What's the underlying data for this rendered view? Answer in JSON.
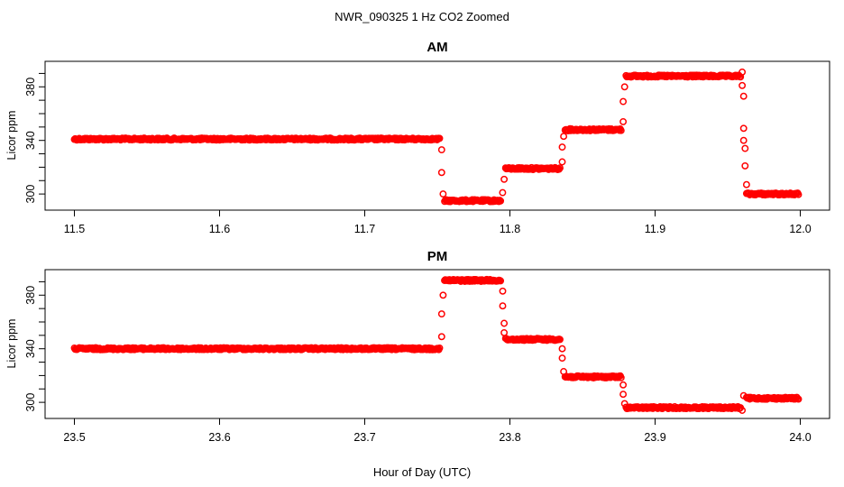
{
  "figure": {
    "suptitle": "NWR_090325  1 Hz CO2 Zoomed",
    "xlabel": "Hour of Day (UTC)"
  },
  "colors": {
    "points": "#ff0000",
    "axes": "#000000",
    "background": "#ffffff"
  },
  "chart_data": [
    {
      "type": "scatter",
      "title": "AM",
      "xlabel": "Hour of Day (UTC)",
      "ylabel": "Licor ppm",
      "xlim": [
        11.5,
        12.0
      ],
      "ylim": [
        292,
        395
      ],
      "xticks": [
        "11.5",
        "11.6",
        "11.7",
        "11.8",
        "11.9",
        "12.0"
      ],
      "yticks": [
        "300",
        "340",
        "380"
      ],
      "grid": false,
      "marker": "open-circle",
      "color": "#ff0000",
      "segments": [
        {
          "x_start": 11.5,
          "x_end": 11.752,
          "y": 341
        },
        {
          "x_start": 11.755,
          "x_end": 11.794,
          "y": 295
        },
        {
          "x_start": 11.797,
          "x_end": 11.835,
          "y": 319
        },
        {
          "x_start": 11.838,
          "x_end": 11.877,
          "y": 348
        },
        {
          "x_start": 11.88,
          "x_end": 11.959,
          "y": 388
        },
        {
          "x_start": 11.963,
          "x_end": 11.999,
          "y": 300
        }
      ],
      "transitions": [
        {
          "x": 11.753,
          "y": 333
        },
        {
          "x": 11.753,
          "y": 316
        },
        {
          "x": 11.754,
          "y": 300
        },
        {
          "x": 11.795,
          "y": 301
        },
        {
          "x": 11.796,
          "y": 311
        },
        {
          "x": 11.836,
          "y": 324
        },
        {
          "x": 11.836,
          "y": 335
        },
        {
          "x": 11.837,
          "y": 343
        },
        {
          "x": 11.878,
          "y": 354
        },
        {
          "x": 11.878,
          "y": 369
        },
        {
          "x": 11.879,
          "y": 380
        },
        {
          "x": 11.96,
          "y": 391
        },
        {
          "x": 11.96,
          "y": 381
        },
        {
          "x": 11.961,
          "y": 373
        },
        {
          "x": 11.961,
          "y": 349
        },
        {
          "x": 11.961,
          "y": 340
        },
        {
          "x": 11.962,
          "y": 334
        },
        {
          "x": 11.962,
          "y": 321
        },
        {
          "x": 11.963,
          "y": 307
        }
      ]
    },
    {
      "type": "scatter",
      "title": "PM",
      "xlabel": "Hour of Day (UTC)",
      "ylabel": "Licor ppm",
      "xlim": [
        23.5,
        24.0
      ],
      "ylim": [
        292,
        395
      ],
      "xticks": [
        "23.5",
        "23.6",
        "23.7",
        "23.8",
        "23.9",
        "24.0"
      ],
      "yticks": [
        "300",
        "340",
        "380"
      ],
      "grid": false,
      "marker": "open-circle",
      "color": "#ff0000",
      "segments": [
        {
          "x_start": 23.5,
          "x_end": 23.752,
          "y": 340
        },
        {
          "x_start": 23.755,
          "x_end": 23.794,
          "y": 391
        },
        {
          "x_start": 23.797,
          "x_end": 23.835,
          "y": 347
        },
        {
          "x_start": 23.838,
          "x_end": 23.877,
          "y": 319
        },
        {
          "x_start": 23.88,
          "x_end": 23.959,
          "y": 296
        },
        {
          "x_start": 23.963,
          "x_end": 23.999,
          "y": 303
        }
      ],
      "transitions": [
        {
          "x": 23.753,
          "y": 349
        },
        {
          "x": 23.753,
          "y": 366
        },
        {
          "x": 23.754,
          "y": 380
        },
        {
          "x": 23.795,
          "y": 383
        },
        {
          "x": 23.795,
          "y": 372
        },
        {
          "x": 23.796,
          "y": 359
        },
        {
          "x": 23.796,
          "y": 352
        },
        {
          "x": 23.836,
          "y": 340
        },
        {
          "x": 23.836,
          "y": 333
        },
        {
          "x": 23.837,
          "y": 323
        },
        {
          "x": 23.878,
          "y": 313
        },
        {
          "x": 23.878,
          "y": 306
        },
        {
          "x": 23.879,
          "y": 299
        },
        {
          "x": 23.96,
          "y": 294
        },
        {
          "x": 23.961,
          "y": 305
        }
      ]
    }
  ]
}
